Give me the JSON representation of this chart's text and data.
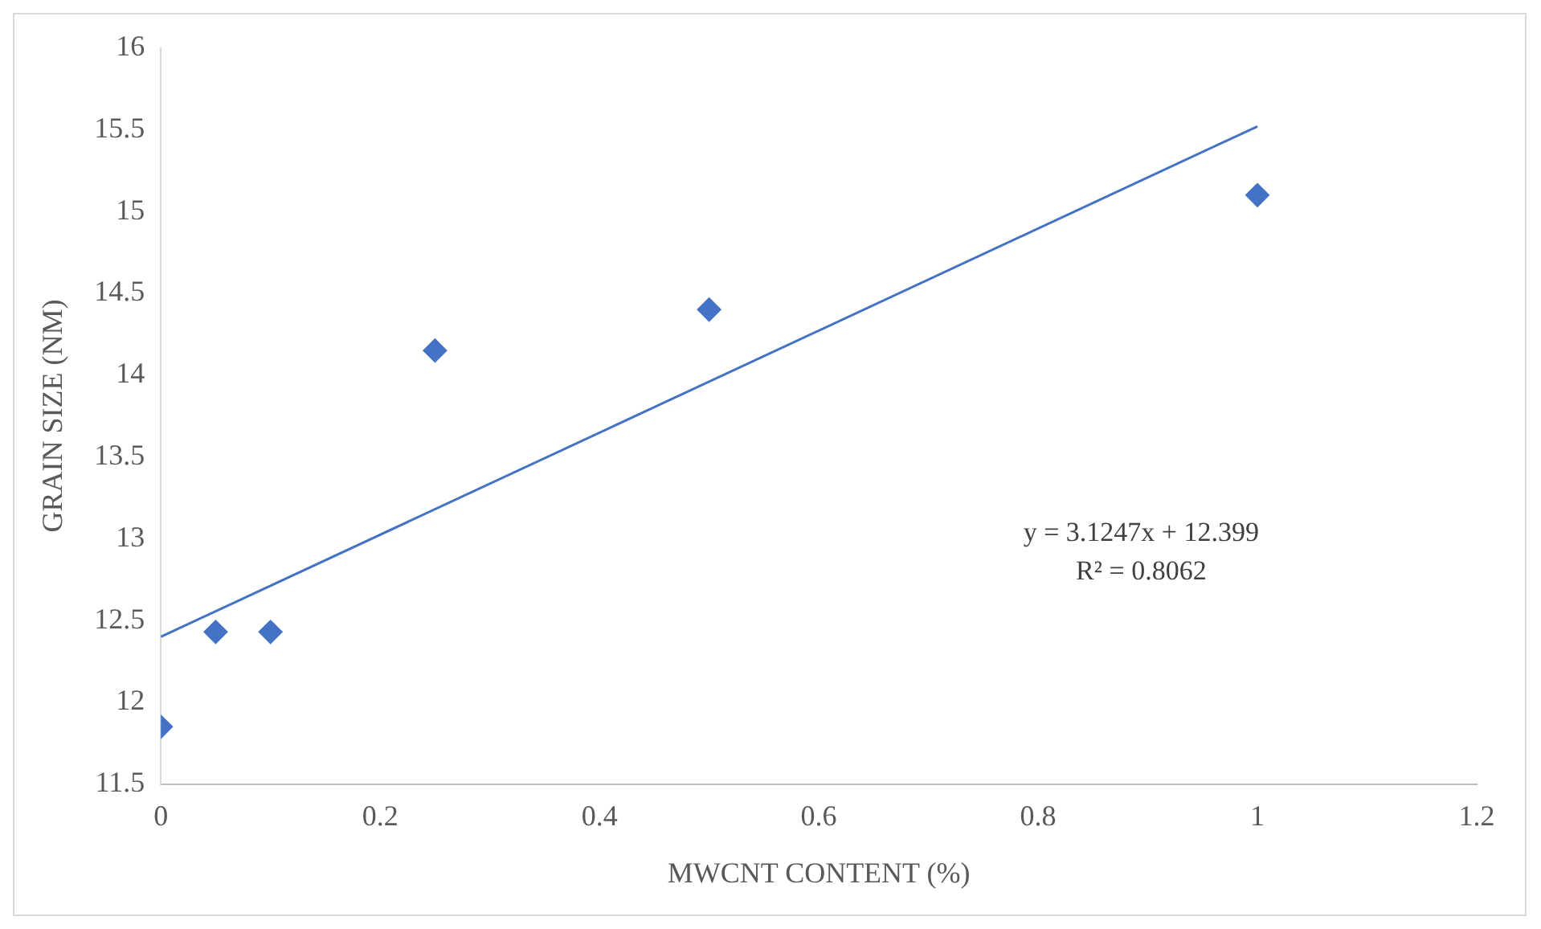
{
  "chart_data": {
    "type": "scatter",
    "xlabel": "MWCNT CONTENT (%)",
    "ylabel": "GRAIN SIZE (NM)",
    "marker": "diamond",
    "x": [
      0,
      0.05,
      0.1,
      0.25,
      0.5,
      1
    ],
    "series": [
      {
        "color": "#4472c4",
        "values": [
          11.85,
          12.43,
          12.43,
          14.15,
          14.4,
          15.1
        ]
      },
      {
        "type": "line",
        "color": "#4472c4",
        "marker": "none",
        "x": [
          0,
          1
        ],
        "values": [
          12.4,
          15.52
        ]
      }
    ],
    "xlim": [
      0,
      1.2
    ],
    "xticks": [
      0,
      0.2,
      0.4,
      0.6,
      0.8,
      1,
      1.2
    ],
    "ylim": [
      11.5,
      16
    ],
    "yticks": [
      11.5,
      12,
      12.5,
      13,
      13.5,
      14,
      14.5,
      15,
      15.5,
      16
    ],
    "annotations": [
      "y = 3.1247x + 12.399",
      "R² = 0.8062"
    ]
  }
}
